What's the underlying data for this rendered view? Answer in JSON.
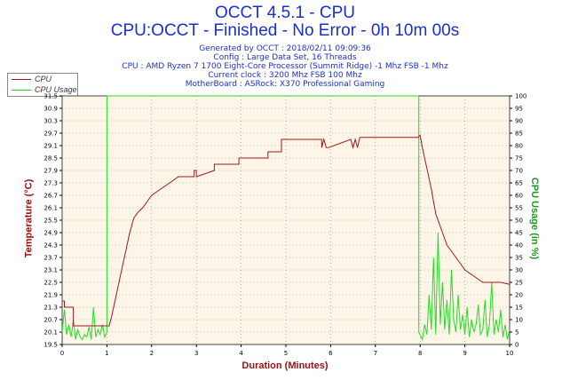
{
  "header": {
    "title": "OCCT 4.5.1 - CPU",
    "subtitle": "CPU:OCCT - Finished - No Error - 0h 10m 00s",
    "info_lines": [
      "Generated by OCCT : 2018/02/11 09:09:36",
      "Config : Large Data Set, 16 Threads",
      "CPU : AMD Ryzen 7 1700 Eight-Core Processor (Summit Ridge) -1 Mhz FSB -1 Mhz",
      "Current clock : 3200 Mhz FSB 100 Mhz",
      "MotherBoard : ASRock: X370 Professional Gaming"
    ]
  },
  "colors": {
    "cpu": "#a01818",
    "cpu_usage": "#22dd22",
    "title": "#1a2fd0",
    "plot_bg": "#fdf6e8",
    "grid": "#888888"
  },
  "chart_data": {
    "type": "line",
    "xlabel": "Duration (Minutes)",
    "ylabel_left": "Temperature (°C)",
    "ylabel_right": "CPU Usage (in %)",
    "xlim": [
      0,
      10
    ],
    "ylim_left": [
      19.5,
      31.5
    ],
    "ylim_right": [
      0,
      100
    ],
    "x_ticks": [
      "0",
      "1",
      "2",
      "3",
      "4",
      "5",
      "6",
      "7",
      "8",
      "9",
      "10"
    ],
    "y_left_ticks": [
      "19.5",
      "20.1",
      "20.7",
      "21.3",
      "21.9",
      "22.5",
      "23.1",
      "23.7",
      "24.3",
      "24.9",
      "25.5",
      "26.1",
      "26.7",
      "27.3",
      "27.9",
      "28.5",
      "29.1",
      "29.7",
      "30.3",
      "30.9",
      "31.5"
    ],
    "y_right_ticks": [
      "0",
      "5",
      "10",
      "15",
      "20",
      "25",
      "30",
      "35",
      "40",
      "45",
      "50",
      "55",
      "60",
      "65",
      "70",
      "75",
      "80",
      "85",
      "90",
      "95",
      "100"
    ],
    "grid": true,
    "legend_position": "top-left",
    "series": [
      {
        "name": "CPU",
        "axis": "left",
        "x": [
          0,
          0.05,
          0.05,
          0.25,
          0.25,
          1.05,
          1.1,
          1.15,
          1.2,
          1.25,
          1.3,
          1.35,
          1.4,
          1.45,
          1.5,
          1.55,
          1.6,
          1.7,
          1.8,
          1.9,
          2.0,
          2.2,
          2.4,
          2.6,
          2.95,
          2.95,
          3.0,
          3.0,
          3.4,
          3.4,
          3.95,
          3.95,
          4.6,
          4.6,
          4.9,
          4.9,
          5.8,
          5.8,
          5.85,
          5.9,
          5.95,
          6.45,
          6.5,
          6.55,
          6.6,
          6.65,
          7.95,
          8.0,
          8.05,
          8.15,
          8.25,
          8.35,
          8.45,
          8.5,
          8.6,
          8.7,
          8.8,
          8.9,
          9.0,
          9.2,
          9.4,
          9.6,
          9.8,
          10.0
        ],
        "y": [
          21.6,
          21.6,
          21.3,
          21.3,
          20.4,
          20.4,
          20.8,
          21.3,
          21.8,
          22.3,
          22.8,
          23.3,
          23.8,
          24.3,
          24.8,
          25.2,
          25.6,
          25.9,
          26.1,
          26.4,
          26.7,
          27.0,
          27.3,
          27.6,
          27.6,
          27.9,
          27.9,
          27.6,
          27.9,
          28.2,
          28.2,
          28.5,
          28.5,
          28.8,
          28.8,
          29.4,
          29.4,
          29.0,
          29.4,
          29.0,
          29.0,
          29.4,
          29.0,
          29.4,
          29.0,
          29.5,
          29.5,
          29.6,
          29.0,
          28.0,
          27.0,
          25.8,
          25.2,
          24.9,
          24.3,
          24.0,
          23.7,
          23.4,
          23.1,
          22.8,
          22.5,
          22.5,
          22.5,
          22.4
        ]
      },
      {
        "name": "CPU Usage",
        "axis": "right",
        "x": [
          0,
          0.05,
          0.1,
          0.15,
          0.2,
          0.25,
          0.3,
          0.35,
          0.4,
          0.45,
          0.5,
          0.55,
          0.6,
          0.65,
          0.7,
          0.75,
          0.8,
          0.85,
          0.9,
          0.95,
          1.0,
          1.0,
          7.97,
          7.97,
          8.05,
          8.1,
          8.15,
          8.2,
          8.25,
          8.3,
          8.35,
          8.4,
          8.45,
          8.5,
          8.55,
          8.6,
          8.65,
          8.7,
          8.75,
          8.8,
          8.85,
          8.9,
          8.95,
          9.0,
          9.05,
          9.1,
          9.15,
          9.2,
          9.25,
          9.3,
          9.35,
          9.4,
          9.45,
          9.5,
          9.55,
          9.6,
          9.65,
          9.7,
          9.75,
          9.8,
          9.85,
          9.9,
          9.95,
          10.0
        ],
        "y": [
          5,
          14,
          4,
          8,
          3,
          10,
          2,
          6,
          3,
          2,
          4,
          3,
          7,
          2,
          15,
          3,
          6,
          4,
          8,
          3,
          5,
          100,
          100,
          5,
          2,
          8,
          4,
          20,
          6,
          35,
          4,
          45,
          8,
          25,
          6,
          18,
          4,
          30,
          10,
          5,
          20,
          6,
          12,
          4,
          15,
          3,
          10,
          5,
          8,
          16,
          4,
          6,
          18,
          3,
          8,
          25,
          4,
          10,
          5,
          14,
          3,
          8,
          2,
          6
        ]
      }
    ]
  }
}
